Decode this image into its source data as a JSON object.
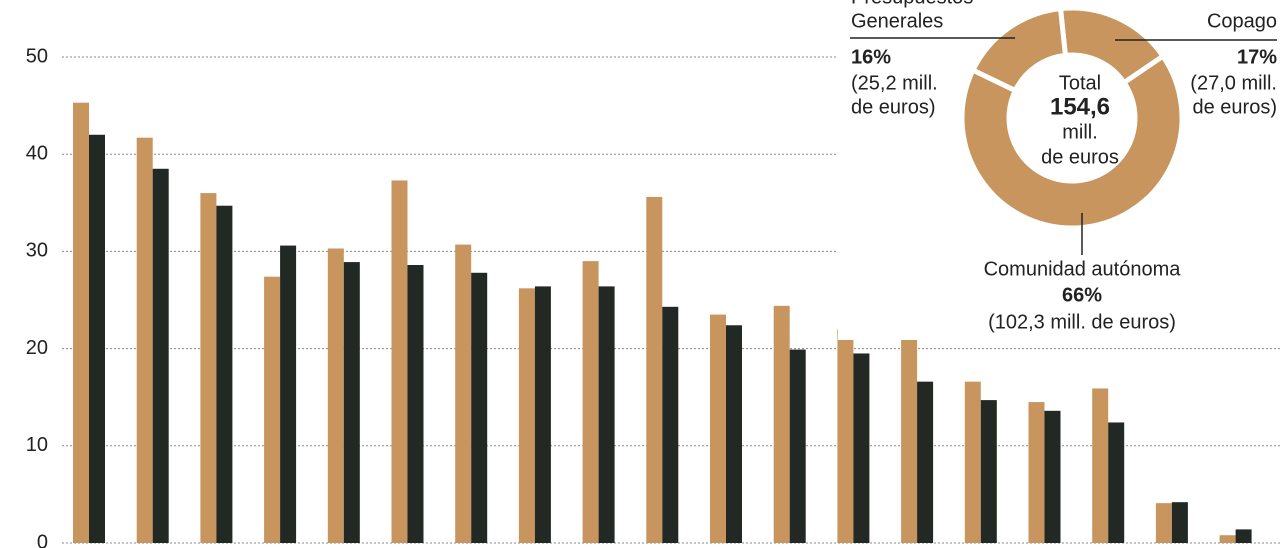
{
  "chart_data": [
    {
      "type": "bar",
      "categories": [
        null,
        null,
        null,
        null,
        null,
        null,
        null,
        null,
        null,
        null,
        null,
        null,
        null,
        null,
        null,
        null,
        null,
        null,
        null
      ],
      "series": [
        {
          "color": "#c8955f",
          "values": [
            45.3,
            41.7,
            36.0,
            27.4,
            30.3,
            37.3,
            30.7,
            26.2,
            29.0,
            35.6,
            23.5,
            24.4,
            22.0,
            21.5,
            16.6,
            14.5,
            15.9,
            4.1,
            0.8
          ]
        },
        {
          "color": "#222824",
          "values": [
            42.0,
            38.5,
            34.7,
            30.6,
            28.9,
            28.6,
            27.8,
            26.4,
            26.4,
            24.3,
            22.4,
            19.9,
            19.5,
            16.6,
            14.7,
            13.6,
            12.4,
            4.2,
            1.4
          ]
        }
      ],
      "ylim": [
        0,
        50
      ],
      "yticks": [
        0,
        10,
        20,
        30,
        40,
        50
      ],
      "grid": true
    },
    {
      "type": "pie",
      "donut": true,
      "color": "#c8955f",
      "labels": [
        [
          "Copago"
        ],
        [
          "Comunidad autónoma"
        ],
        [
          "Presupuestos",
          "Generales"
        ]
      ],
      "values": [
        17,
        66,
        16
      ],
      "value_labels": [
        "17%",
        "66%",
        "16%"
      ],
      "details": [
        [
          "(27,0 mill.",
          "de euros)"
        ],
        [
          "(102,3 mill. de euros)"
        ],
        [
          "(25,2 mill.",
          "de euros)"
        ]
      ],
      "center_label": [
        "Total",
        "154,6",
        "mill.",
        "de euros"
      ]
    }
  ]
}
